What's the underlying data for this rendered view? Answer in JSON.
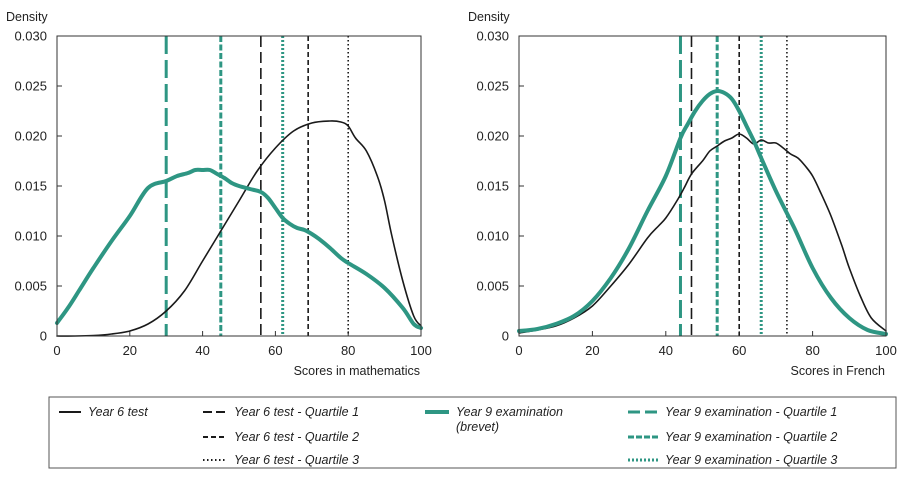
{
  "colors": {
    "y6": "#1a1a1a",
    "y9": "#2e9683"
  },
  "legend": {
    "y6_test": "Year 6 test",
    "y6_q1": "Year 6 test - Quartile 1",
    "y6_q2": "Year 6 test - Quartile 2",
    "y6_q3": "Year 6 test - Quartile 3",
    "y9_exam_line1": "Year 9 examination",
    "y9_exam_line2": "(brevet)",
    "y9_q1": "Year 9 examination - Quartile 1",
    "y9_q2": "Year 9 examination - Quartile 2",
    "y9_q3": "Year 9 examination - Quartile 3"
  },
  "chart_data": [
    {
      "type": "line",
      "ylabel": "Density",
      "xlabel": "Scores in mathematics",
      "xlim": [
        0,
        100
      ],
      "ylim": [
        0,
        0.03
      ],
      "xticks": [
        "0",
        "20",
        "40",
        "60",
        "80",
        "100"
      ],
      "yticks": [
        "0",
        "0.005",
        "0.010",
        "0.015",
        "0.020",
        "0.025",
        "0.030"
      ],
      "series": [
        {
          "name": "Year 6 test",
          "x": [
            0,
            5,
            10,
            15,
            20,
            25,
            30,
            35,
            40,
            45,
            50,
            55,
            60,
            65,
            70,
            75,
            78,
            80,
            82,
            85,
            88,
            90,
            92,
            95,
            98,
            100
          ],
          "y": [
            0,
            0,
            5e-05,
            0.0002,
            0.0005,
            0.0012,
            0.0025,
            0.0045,
            0.0075,
            0.0105,
            0.0135,
            0.0165,
            0.0188,
            0.0205,
            0.0213,
            0.0215,
            0.0214,
            0.021,
            0.0198,
            0.0185,
            0.016,
            0.0135,
            0.01,
            0.0055,
            0.002,
            0.001
          ]
        },
        {
          "name": "Year 9 examination (brevet)",
          "x": [
            0,
            3,
            6,
            10,
            15,
            20,
            25,
            30,
            33,
            36,
            38,
            40,
            42,
            44,
            46,
            48,
            50,
            53,
            56,
            58,
            60,
            62,
            64,
            66,
            68,
            70,
            72,
            75,
            78,
            80,
            85,
            90,
            95,
            98,
            100
          ],
          "y": [
            0.0013,
            0.0028,
            0.0045,
            0.0068,
            0.0095,
            0.012,
            0.0148,
            0.0155,
            0.016,
            0.0163,
            0.0166,
            0.0166,
            0.0166,
            0.0162,
            0.0158,
            0.0153,
            0.015,
            0.0147,
            0.0144,
            0.0138,
            0.0128,
            0.0118,
            0.0112,
            0.0108,
            0.0106,
            0.0102,
            0.0097,
            0.0088,
            0.0078,
            0.0073,
            0.0062,
            0.0048,
            0.0028,
            0.0012,
            0.0008
          ]
        }
      ],
      "quartiles": {
        "Year 6 test - Quartile 1": 56,
        "Year 6 test - Quartile 2": 69,
        "Year 6 test - Quartile 3": 80,
        "Year 9 examination - Quartile 1": 30,
        "Year 9 examination - Quartile 2": 45,
        "Year 9 examination - Quartile 3": 62
      }
    },
    {
      "type": "line",
      "ylabel": "Density",
      "xlabel": "Scores in French",
      "xlim": [
        0,
        100
      ],
      "ylim": [
        0,
        0.03
      ],
      "xticks": [
        "0",
        "20",
        "40",
        "60",
        "80",
        "100"
      ],
      "yticks": [
        "0",
        "0.005",
        "0.010",
        "0.015",
        "0.020",
        "0.025",
        "0.030"
      ],
      "series": [
        {
          "name": "Year 6 test",
          "x": [
            0,
            5,
            10,
            15,
            20,
            25,
            30,
            35,
            38,
            40,
            43,
            45,
            47,
            50,
            52,
            54,
            56,
            58,
            60,
            62,
            64,
            66,
            68,
            70,
            72,
            74,
            76,
            78,
            80,
            82,
            85,
            88,
            90,
            93,
            96,
            100
          ],
          "y": [
            0.0003,
            0.0006,
            0.001,
            0.0018,
            0.003,
            0.005,
            0.0072,
            0.0098,
            0.011,
            0.0118,
            0.0135,
            0.0148,
            0.0162,
            0.0175,
            0.0185,
            0.019,
            0.0195,
            0.0198,
            0.0202,
            0.0198,
            0.0192,
            0.0196,
            0.0193,
            0.0193,
            0.0188,
            0.0182,
            0.0178,
            0.017,
            0.016,
            0.0145,
            0.012,
            0.009,
            0.0068,
            0.004,
            0.0018,
            0.0005
          ]
        },
        {
          "name": "Year 9 examination (brevet)",
          "x": [
            0,
            5,
            10,
            15,
            20,
            25,
            30,
            35,
            40,
            44,
            46,
            48,
            50,
            52,
            54,
            56,
            58,
            60,
            62,
            64,
            66,
            70,
            75,
            80,
            85,
            90,
            95,
            100
          ],
          "y": [
            0.0005,
            0.0007,
            0.0012,
            0.002,
            0.0035,
            0.0058,
            0.0088,
            0.0125,
            0.016,
            0.0198,
            0.0212,
            0.0225,
            0.0235,
            0.0242,
            0.0245,
            0.0243,
            0.0237,
            0.0225,
            0.021,
            0.0195,
            0.0178,
            0.0145,
            0.0108,
            0.0068,
            0.0038,
            0.0018,
            0.0006,
            0.0002
          ]
        }
      ],
      "quartiles": {
        "Year 6 test - Quartile 1": 47,
        "Year 6 test - Quartile 2": 60,
        "Year 6 test - Quartile 3": 73,
        "Year 9 examination - Quartile 1": 44,
        "Year 9 examination - Quartile 2": 54,
        "Year 9 examination - Quartile 3": 66
      }
    }
  ]
}
